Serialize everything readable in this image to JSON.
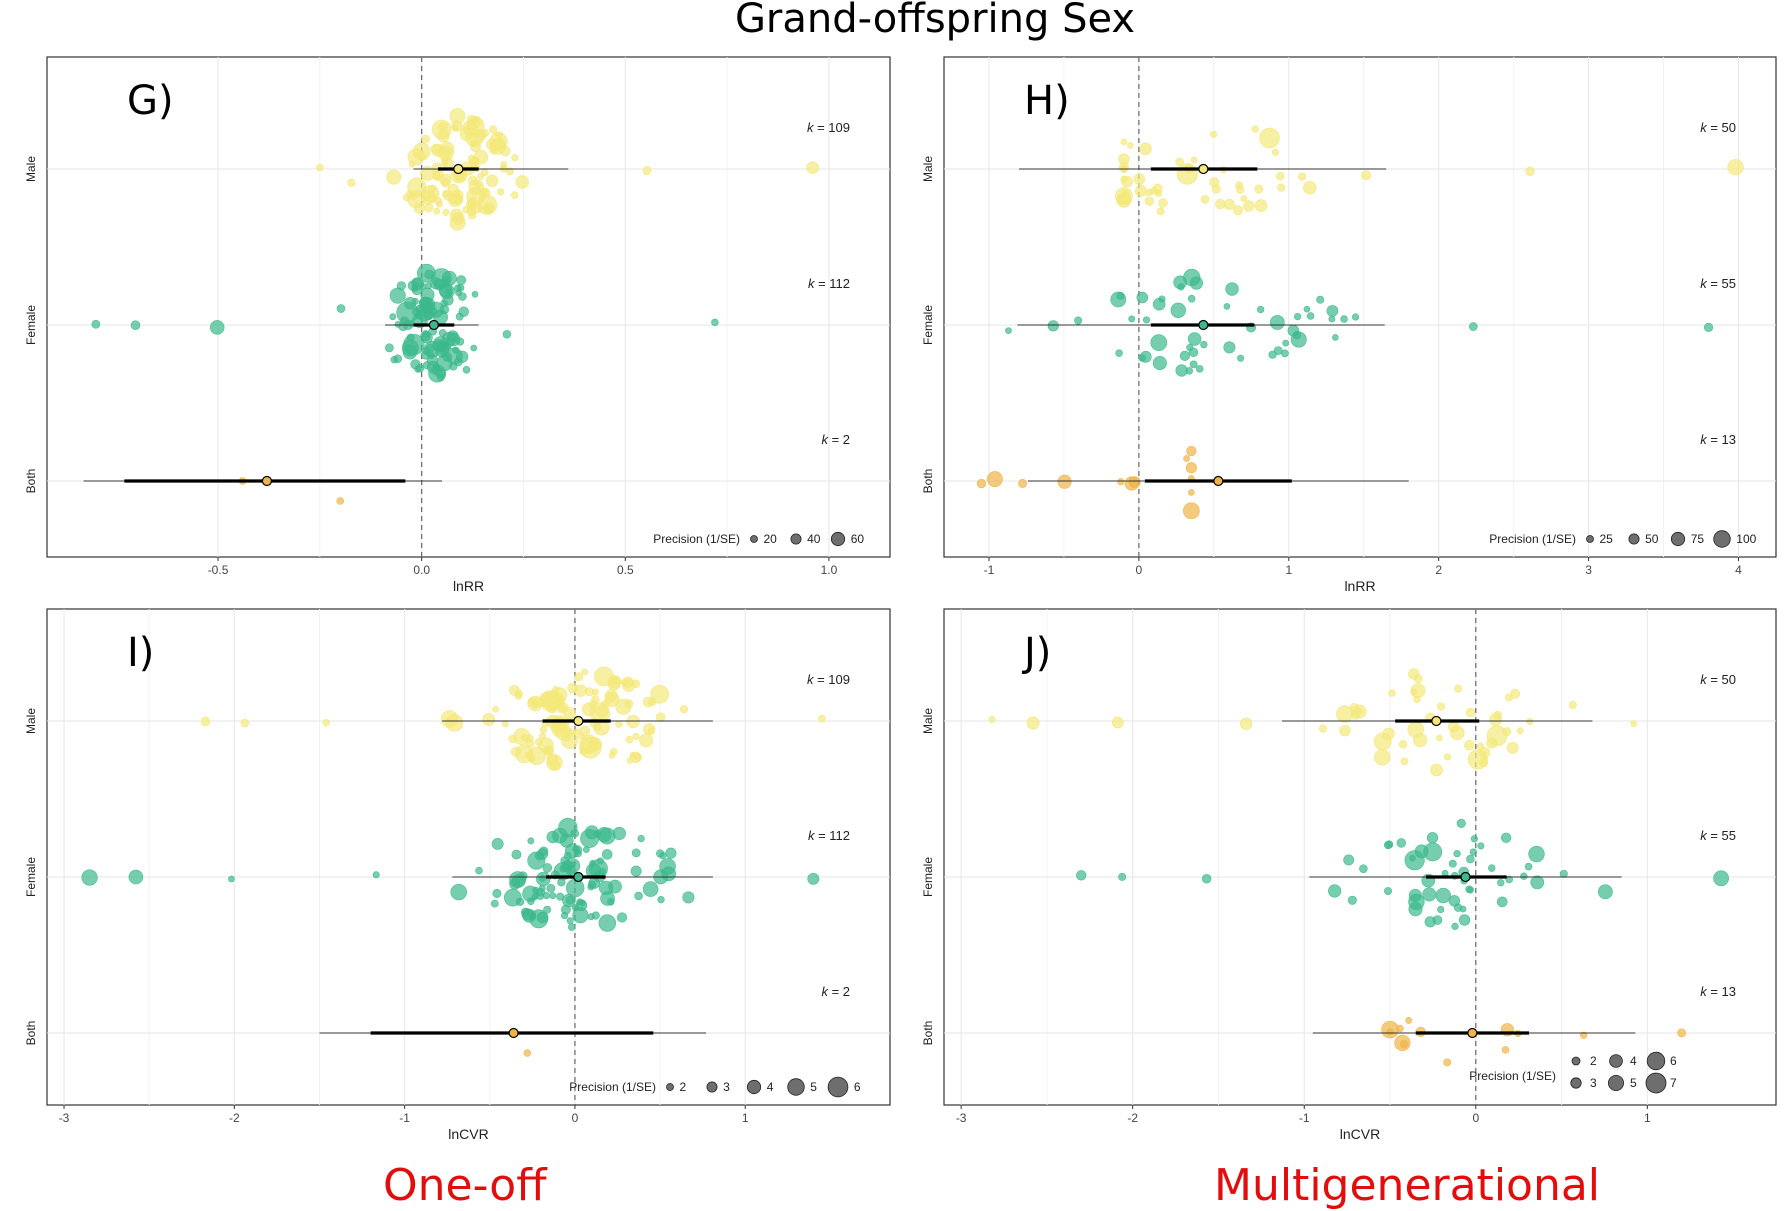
{
  "title": "Grand-offspring Sex",
  "bottom_labels": {
    "left": "One-off",
    "right": "Multigenerational"
  },
  "colors": {
    "Male": "#f3e879",
    "Female": "#3cb98b",
    "Both": "#f0b347",
    "label_red": "#e20d0d"
  },
  "chart_data": [
    {
      "type": "scatter",
      "panel": "G)",
      "xlabel": "lnRR",
      "ylabel": "",
      "xlim": [
        -0.92,
        1.15
      ],
      "x_ticks": [
        -0.5,
        0.0,
        0.5,
        1.0
      ],
      "x_tick_labels": [
        "-0.5",
        "0.0",
        "0.5",
        "1.0"
      ],
      "grid": true,
      "legend_position": "bottom-right",
      "categories": [
        "Male",
        "Female",
        "Both"
      ],
      "k_labels": [
        "109",
        "112",
        "2"
      ],
      "estimates": [
        {
          "group": "Male",
          "mean": 0.09,
          "ci": [
            0.04,
            0.14
          ],
          "pi": [
            -0.02,
            0.36
          ]
        },
        {
          "group": "Female",
          "mean": 0.03,
          "ci": [
            -0.02,
            0.08
          ],
          "pi": [
            -0.09,
            0.14
          ]
        },
        {
          "group": "Both",
          "mean": -0.38,
          "ci": [
            -0.73,
            -0.04
          ],
          "pi": [
            -0.83,
            0.05
          ]
        }
      ],
      "legend": {
        "title": "Precision (1/SE)",
        "values": [
          "20",
          "40",
          "60"
        ]
      },
      "series": [
        {
          "group": "Male",
          "k": 109,
          "x_range": [
            -0.25,
            0.96
          ],
          "spread": 1
        },
        {
          "group": "Female",
          "k": 112,
          "x_range": [
            -0.8,
            0.72
          ],
          "spread": 1
        },
        {
          "group": "Both",
          "k": 2,
          "x_points": [
            -0.44,
            -0.2
          ],
          "y_offsets": [
            0,
            -0.2
          ]
        }
      ]
    },
    {
      "type": "scatter",
      "panel": "H)",
      "xlabel": "lnRR",
      "ylabel": "",
      "xlim": [
        -1.3,
        4.25
      ],
      "x_ticks": [
        -1,
        0,
        1,
        2,
        3,
        4
      ],
      "x_tick_labels": [
        "-1",
        "0",
        "1",
        "2",
        "3",
        "4"
      ],
      "grid": true,
      "legend_position": "bottom-right",
      "categories": [
        "Male",
        "Female",
        "Both"
      ],
      "k_labels": [
        "50",
        "55",
        "13"
      ],
      "estimates": [
        {
          "group": "Male",
          "mean": 0.43,
          "ci": [
            0.08,
            0.79
          ],
          "pi": [
            -0.8,
            1.65
          ]
        },
        {
          "group": "Female",
          "mean": 0.43,
          "ci": [
            0.08,
            0.77
          ],
          "pi": [
            -0.81,
            1.64
          ]
        },
        {
          "group": "Both",
          "mean": 0.53,
          "ci": [
            0.04,
            1.02
          ],
          "pi": [
            -0.74,
            1.8
          ]
        }
      ],
      "legend": {
        "title": "Precision (1/SE)",
        "values": [
          "25",
          "50",
          "75",
          "100"
        ]
      },
      "series": [
        {
          "group": "Male",
          "k": 50,
          "x_range": [
            -0.1,
            3.98
          ],
          "spread": 1
        },
        {
          "group": "Female",
          "k": 55,
          "x_range": [
            -0.87,
            3.8
          ],
          "spread": 1
        },
        {
          "group": "Both",
          "k": 13,
          "x_range": [
            -1.05,
            0.35
          ],
          "spread": 1
        }
      ]
    },
    {
      "type": "scatter",
      "panel": "I)",
      "xlabel": "lnCVR",
      "ylabel": "",
      "xlim": [
        -3.1,
        1.85
      ],
      "x_ticks": [
        -3,
        -2,
        -1,
        0,
        1
      ],
      "x_tick_labels": [
        "-3",
        "-2",
        "-1",
        "0",
        "1"
      ],
      "grid": true,
      "legend_position": "bottom-right",
      "categories": [
        "Male",
        "Female",
        "Both"
      ],
      "k_labels": [
        "109",
        "112",
        "2"
      ],
      "estimates": [
        {
          "group": "Male",
          "mean": 0.02,
          "ci": [
            -0.19,
            0.21
          ],
          "pi": [
            -0.78,
            0.81
          ]
        },
        {
          "group": "Female",
          "mean": 0.02,
          "ci": [
            -0.17,
            0.18
          ],
          "pi": [
            -0.72,
            0.81
          ]
        },
        {
          "group": "Both",
          "mean": -0.36,
          "ci": [
            -1.2,
            0.46
          ],
          "pi": [
            -1.5,
            0.77
          ]
        }
      ],
      "legend": {
        "title": "Precision (1/SE)",
        "values": [
          "2",
          "3",
          "4",
          "5",
          "6"
        ]
      },
      "series": [
        {
          "group": "Male",
          "k": 109,
          "x_range": [
            -2.17,
            1.45
          ],
          "spread": 1
        },
        {
          "group": "Female",
          "k": 112,
          "x_range": [
            -2.85,
            1.4
          ],
          "spread": 1
        },
        {
          "group": "Both",
          "k": 2,
          "x_points": [
            -0.36,
            -0.28
          ],
          "y_offsets": [
            0,
            -0.2
          ]
        }
      ]
    },
    {
      "type": "scatter",
      "panel": "J)",
      "xlabel": "lnCVR",
      "ylabel": "",
      "xlim": [
        -3.1,
        1.75
      ],
      "x_ticks": [
        -3,
        -2,
        -1,
        0,
        1
      ],
      "x_tick_labels": [
        "-3",
        "-2",
        "-1",
        "0",
        "1"
      ],
      "grid": true,
      "legend_position": "bottom-right",
      "categories": [
        "Male",
        "Female",
        "Both"
      ],
      "k_labels": [
        "50",
        "55",
        "13"
      ],
      "estimates": [
        {
          "group": "Male",
          "mean": -0.23,
          "ci": [
            -0.47,
            0.02
          ],
          "pi": [
            -1.13,
            0.68
          ]
        },
        {
          "group": "Female",
          "mean": -0.06,
          "ci": [
            -0.29,
            0.18
          ],
          "pi": [
            -0.97,
            0.85
          ]
        },
        {
          "group": "Both",
          "mean": -0.02,
          "ci": [
            -0.35,
            0.31
          ],
          "pi": [
            -0.95,
            0.93
          ]
        }
      ],
      "legend": {
        "title": "Precision (1/SE)",
        "values": [
          "2",
          "3",
          "4",
          "5",
          "6",
          "7"
        ]
      },
      "series": [
        {
          "group": "Male",
          "k": 50,
          "x_range": [
            -2.82,
            0.92
          ],
          "spread": 1
        },
        {
          "group": "Female",
          "k": 55,
          "x_range": [
            -2.3,
            1.43
          ],
          "spread": 1
        },
        {
          "group": "Both",
          "k": 13,
          "x_range": [
            -0.5,
            1.2
          ],
          "spread": 1
        }
      ]
    }
  ]
}
